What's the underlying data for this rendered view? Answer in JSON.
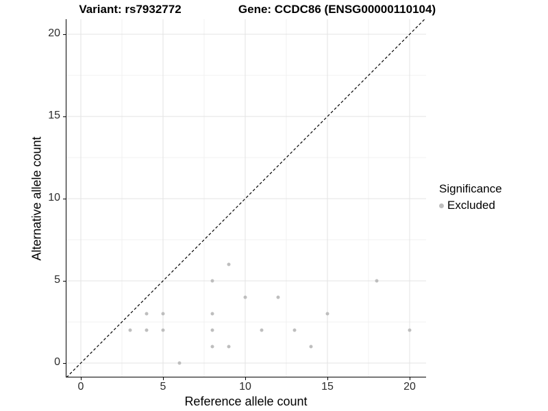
{
  "titles": {
    "left": "Variant: rs7932772",
    "right": "Gene: CCDC86 (ENSG00000110104)"
  },
  "axes": {
    "x": {
      "label": "Reference allele count",
      "tick_labels": [
        "0",
        "5",
        "10",
        "15",
        "20"
      ]
    },
    "y": {
      "label": "Alternative allele count",
      "tick_labels": [
        "0",
        "5",
        "10",
        "15",
        "20"
      ]
    }
  },
  "legend": {
    "title": "Significance",
    "items": [
      {
        "label": "Excluded",
        "color": "#BEBEBE"
      }
    ]
  },
  "colors": {
    "point": "#BEBEBE",
    "grid_major": "#E3E3E3",
    "grid_minor": "#F0F0F0",
    "axis_line": "#000000",
    "tick_text": "#2B2B2B",
    "reference_line": "#000000"
  },
  "chart_data": {
    "type": "scatter",
    "title": "Variant: rs7932772 | Gene: CCDC86 (ENSG00000110104)",
    "xlabel": "Reference allele count",
    "ylabel": "Alternative allele count",
    "xlim": [
      -0.917,
      21.0
    ],
    "ylim": [
      -0.875,
      20.917
    ],
    "x_ticks": [
      0,
      5,
      10,
      15,
      20
    ],
    "y_ticks": [
      0,
      5,
      10,
      15,
      20
    ],
    "x_minor_ticks": [
      2.5,
      7.5,
      12.5,
      17.5
    ],
    "y_minor_ticks": [
      2.5,
      7.5,
      12.5,
      17.5
    ],
    "grid": "major and minor, light gray on white",
    "legend_position": "right",
    "reference_line": {
      "equation": "y = x",
      "style": "dashed",
      "color": "#000000"
    },
    "series": [
      {
        "name": "Excluded",
        "color": "#BEBEBE",
        "points": [
          [
            3,
            2
          ],
          [
            4,
            2
          ],
          [
            4,
            3
          ],
          [
            5,
            2
          ],
          [
            5,
            3
          ],
          [
            6,
            0
          ],
          [
            8,
            1
          ],
          [
            8,
            2
          ],
          [
            8,
            3
          ],
          [
            8,
            5
          ],
          [
            9,
            1
          ],
          [
            9,
            6
          ],
          [
            10,
            4
          ],
          [
            11,
            2
          ],
          [
            12,
            4
          ],
          [
            13,
            2
          ],
          [
            14,
            1
          ],
          [
            15,
            3
          ],
          [
            18,
            5
          ],
          [
            20,
            2
          ]
        ]
      }
    ]
  }
}
